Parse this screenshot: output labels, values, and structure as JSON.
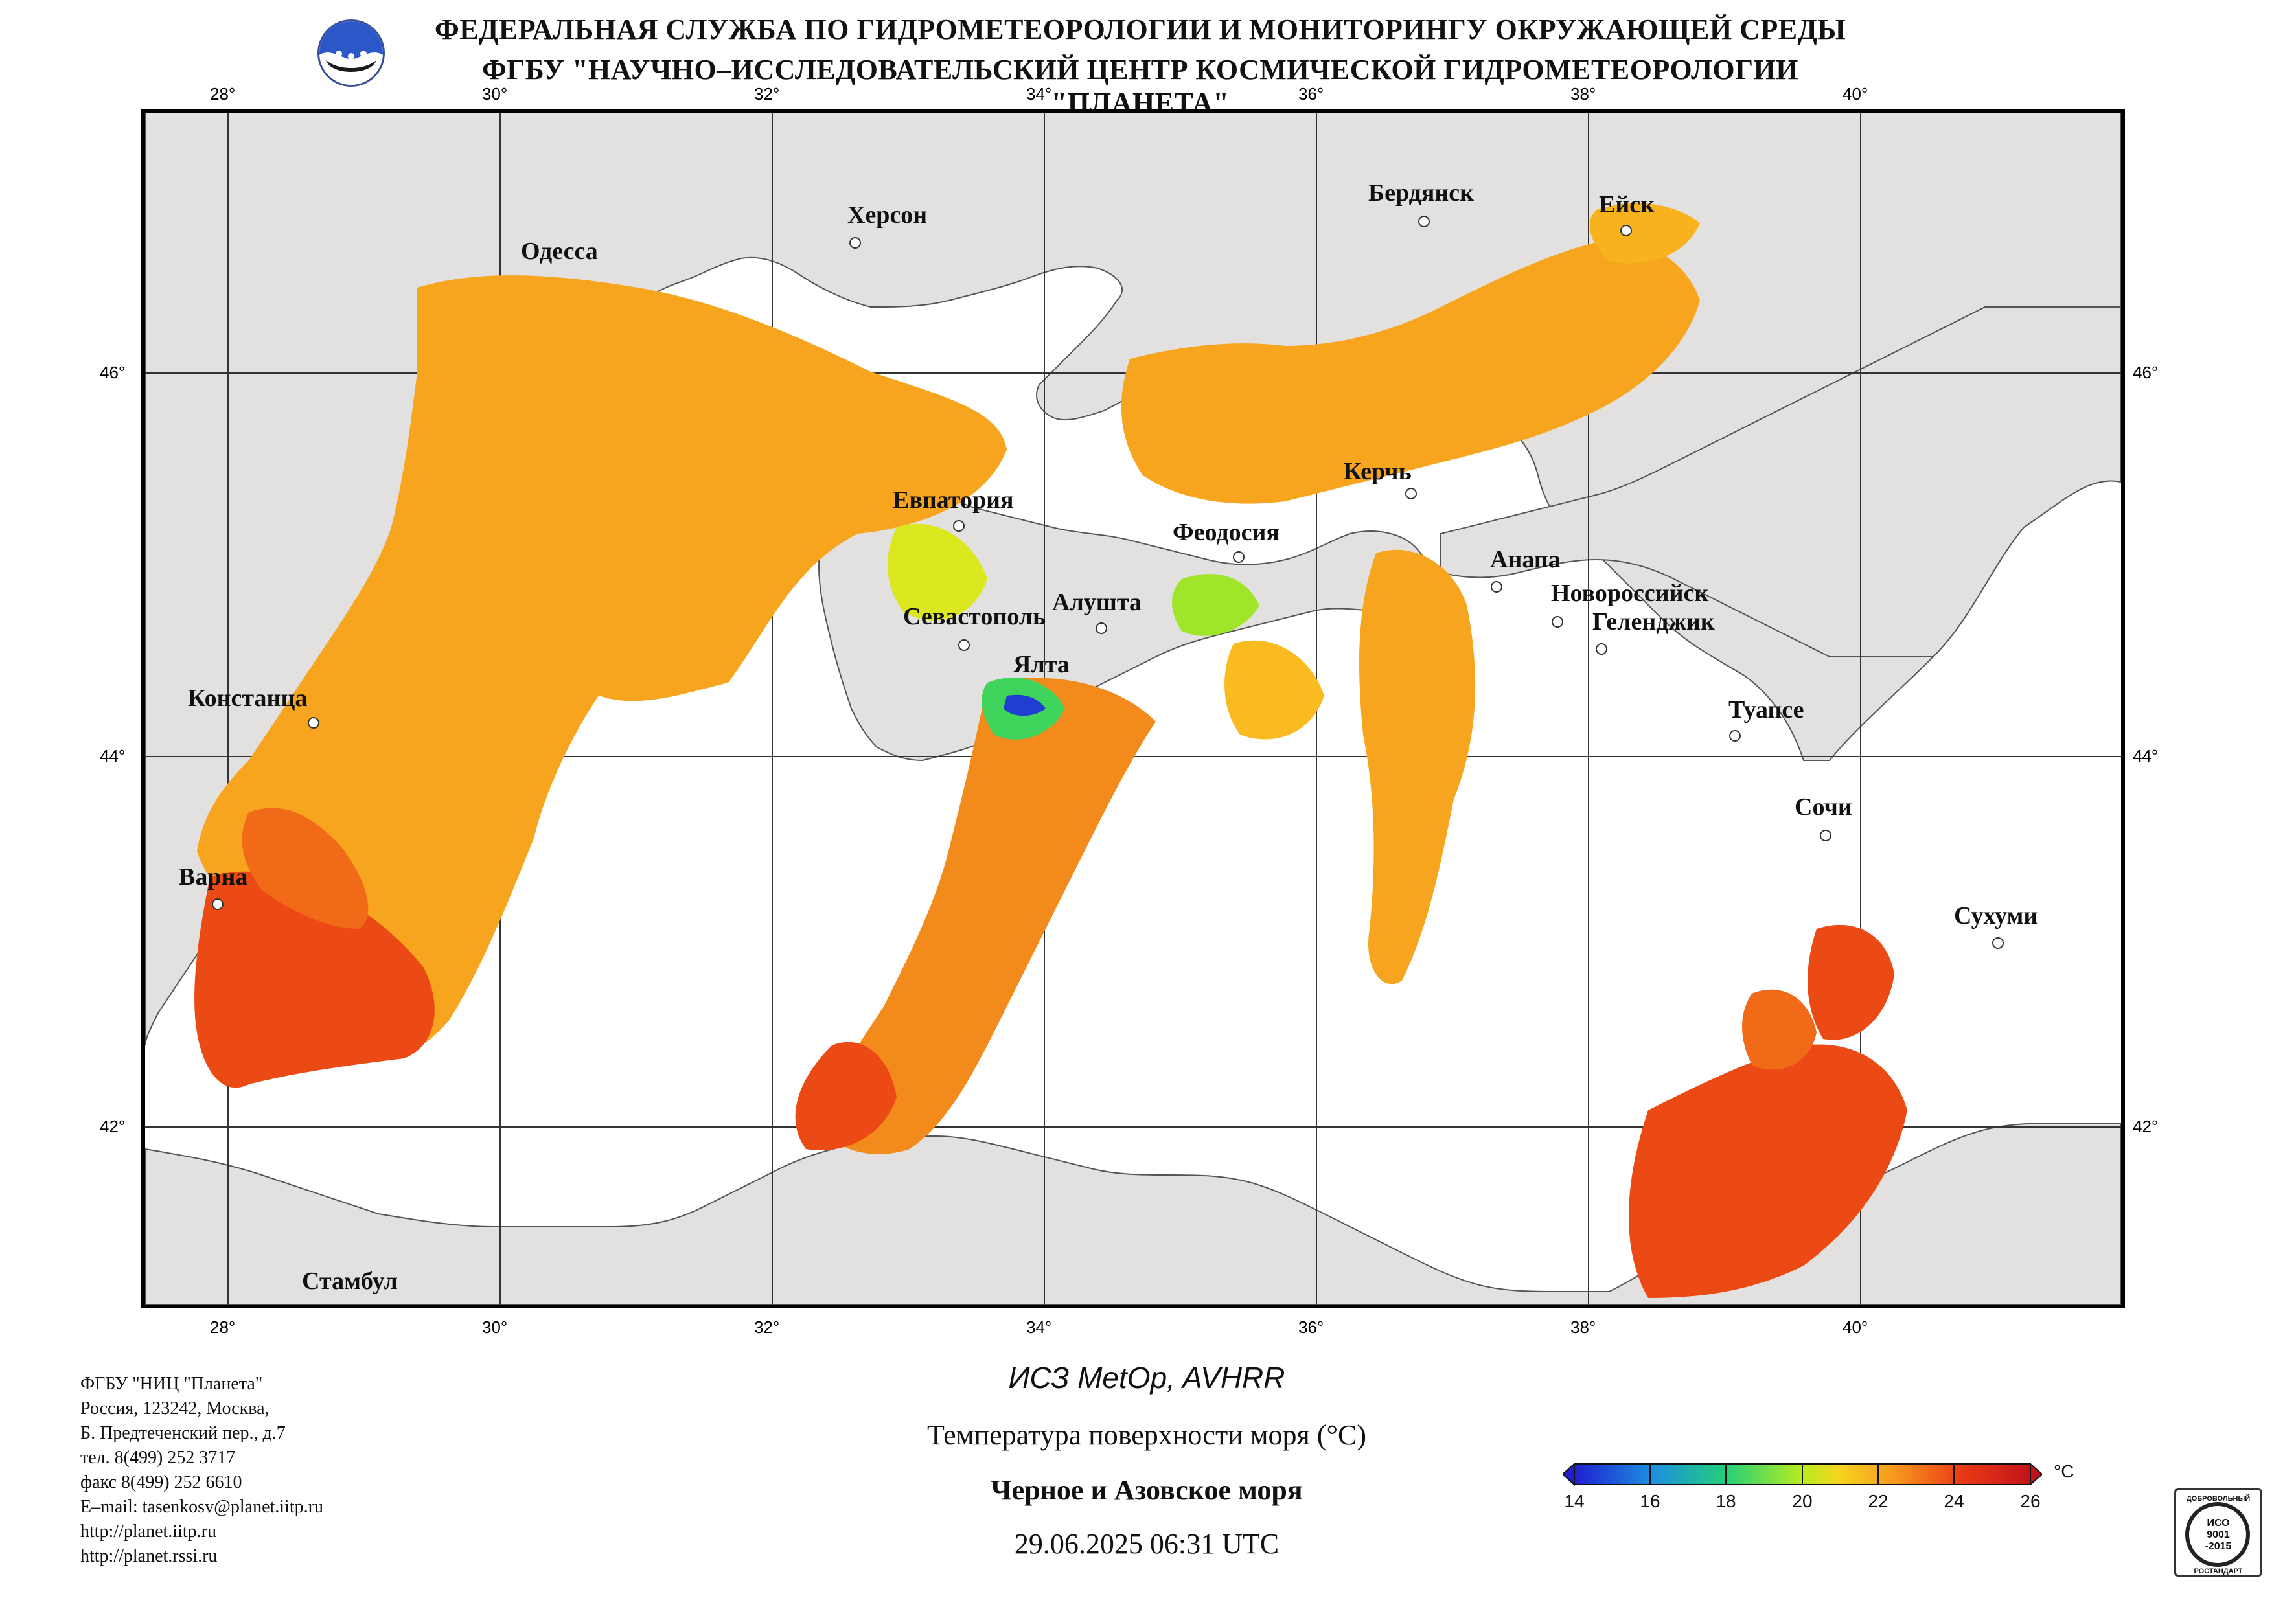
{
  "header": {
    "title_line1": "ФЕДЕРАЛЬНАЯ СЛУЖБА ПО ГИДРОМЕТЕОРОЛОГИИ И МОНИТОРИНГУ ОКРУЖАЮЩЕЙ СРЕДЫ",
    "title_line2": "ФГБУ \"НАУЧНО–ИССЛЕДОВАТЕЛЬСКИЙ ЦЕНТР КОСМИЧЕСКОЙ ГИДРОМЕТЕОРОЛОГИИ \"ПЛАНЕТА\"",
    "logo_icon": "planeta-logo-icon"
  },
  "map": {
    "longitude_labels": [
      "28°",
      "30°",
      "32°",
      "34°",
      "36°",
      "38°",
      "40°"
    ],
    "latitude_labels": [
      "46°",
      "44°",
      "42°"
    ],
    "cities": [
      {
        "name": "Одесса"
      },
      {
        "name": "Херсон"
      },
      {
        "name": "Бердянск"
      },
      {
        "name": "Ейск"
      },
      {
        "name": "Евпатория"
      },
      {
        "name": "Керчь"
      },
      {
        "name": "Феодосия"
      },
      {
        "name": "Анапа"
      },
      {
        "name": "Новороссийск"
      },
      {
        "name": "Геленджик"
      },
      {
        "name": "Алушта"
      },
      {
        "name": "Севастополь"
      },
      {
        "name": "Ялта"
      },
      {
        "name": "Констанца"
      },
      {
        "name": "Туапсе"
      },
      {
        "name": "Сочи"
      },
      {
        "name": "Варна"
      },
      {
        "name": "Сухуми"
      },
      {
        "name": "Стамбул"
      }
    ],
    "colors": {
      "land": "#e3e1e0",
      "sea_no_data": "#ffffff",
      "sst_orange": "#f7a51e",
      "sst_red": "#ec4a14"
    }
  },
  "footer": {
    "contact_lines": [
      "ФГБУ \"НИЦ \"Планета\"",
      "Россия, 123242, Москва,",
      "Б. Предтеченский пер., д.7",
      "тел. 8(499) 252 3717",
      "факс 8(499) 252 6610",
      "E–mail: tasenkosv@planet.iitp.ru",
      "http://planet.iitp.ru",
      "http://planet.rssi.ru"
    ],
    "satellite": "ИСЗ MetOp, AVHRR",
    "parameter": "Температура поверхности моря (°С)",
    "region": "Черное и Азовское моря",
    "datetime": "29.06.2025 06:31 UTC"
  },
  "legend": {
    "ticks": [
      "14",
      "16",
      "18",
      "20",
      "22",
      "24",
      "26"
    ],
    "unit": "°С",
    "stops": [
      "#1f1fd0",
      "#1d8ee0",
      "#22cf7a",
      "#b8ec1f",
      "#f6d51f",
      "#f79a1d",
      "#ea3a15",
      "#c1141a"
    ]
  },
  "certificate": {
    "line_top": "ДОБРОВОЛЬНЫЙ",
    "line1": "ИСО",
    "line2": "9001",
    "line3": "-2015",
    "line_bottom": "РОСТАНДАРТ"
  }
}
